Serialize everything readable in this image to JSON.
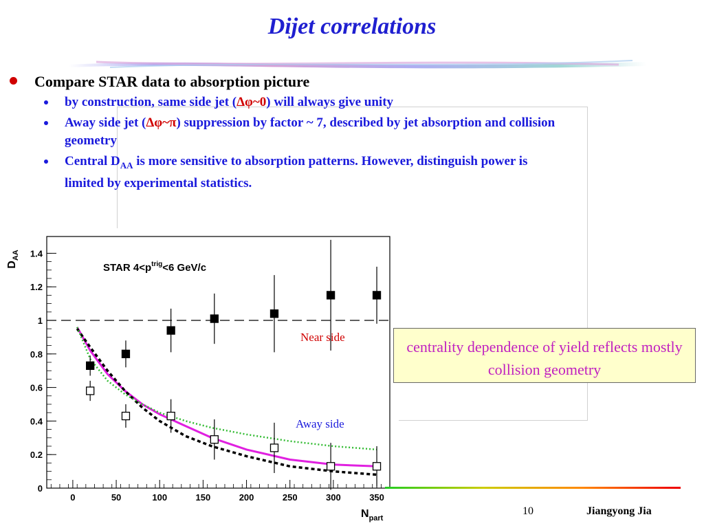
{
  "slide": {
    "title": "Dijet correlations",
    "bullet_main": "Compare STAR data to absorption picture",
    "sub1_a": "by construction, same side jet (",
    "sub1_sym": "Δφ~0",
    "sub1_b": ") will always give unity",
    "sub2_a": "Away side jet (",
    "sub2_sym": "Δφ~π",
    "sub2_b": ") suppression by factor ~ 7, described by jet absorption and collision geometry",
    "sub3_a": "Central D",
    "sub3_sub": "AA",
    "sub3_b": " is more sensitive to absorption patterns.  However, distinguish power is limited by experimental statistics.",
    "callout": "centrality dependence of yield reflects mostly collision geometry",
    "page_number": "10",
    "author": "Jiangyong Jia"
  },
  "colors": {
    "title": "#1f1fd0",
    "bullet_text": "#1a1adc",
    "accent_red": "#d00000",
    "magenta": "#e020e0",
    "green_dotted": "#33bb33",
    "callout_bg": "#ffffcc",
    "callout_text": "#c020c0"
  },
  "chart_data": {
    "type": "scatter",
    "ylabel_main": "D",
    "ylabel_sub": "AA",
    "xlabel_main": "N",
    "xlabel_sub": "part",
    "legend_main": "STAR 4<p",
    "legend_sup": "trig",
    "legend_tail": "<6 GeV/c",
    "xlim": [
      -30,
      365
    ],
    "ylim": [
      0,
      1.5
    ],
    "xticks": [
      0,
      50,
      100,
      150,
      200,
      250,
      300,
      350
    ],
    "yticks": [
      0,
      0.2,
      0.4,
      0.6,
      0.8,
      1,
      1.2,
      1.4
    ],
    "xtick_labels": [
      "0",
      "50",
      "100",
      "150",
      "200",
      "250",
      "300",
      "350"
    ],
    "ytick_labels": [
      "0",
      "0.2",
      "0.4",
      "0.6",
      "0.8",
      "1",
      "1.2",
      "1.4"
    ],
    "reference_line": 1,
    "series": [
      {
        "name": "Near side",
        "marker": "filled-square",
        "x": [
          20,
          61,
          113,
          163,
          232,
          297,
          350
        ],
        "y": [
          0.73,
          0.8,
          0.94,
          1.01,
          1.04,
          1.15,
          1.15
        ],
        "err": [
          0.06,
          0.08,
          0.13,
          0.15,
          0.23,
          0.33,
          0.17
        ]
      },
      {
        "name": "Away side",
        "marker": "open-square",
        "x": [
          20,
          61,
          113,
          163,
          232,
          297,
          350
        ],
        "y": [
          0.58,
          0.43,
          0.43,
          0.29,
          0.24,
          0.13,
          0.13
        ],
        "err": [
          0.06,
          0.07,
          0.1,
          0.12,
          0.15,
          0.14,
          0.12
        ]
      }
    ],
    "curves": [
      {
        "style": "solid-magenta",
        "x": [
          5,
          20,
          40,
          60,
          80,
          100,
          130,
          160,
          200,
          250,
          300,
          350
        ],
        "y": [
          0.96,
          0.82,
          0.68,
          0.58,
          0.5,
          0.44,
          0.37,
          0.3,
          0.23,
          0.17,
          0.14,
          0.13
        ]
      },
      {
        "style": "dashed-black",
        "x": [
          5,
          20,
          40,
          60,
          80,
          100,
          130,
          160,
          200,
          250,
          300,
          350
        ],
        "y": [
          0.95,
          0.84,
          0.7,
          0.58,
          0.48,
          0.4,
          0.31,
          0.25,
          0.19,
          0.13,
          0.1,
          0.08
        ]
      },
      {
        "style": "dotted-green",
        "x": [
          5,
          20,
          40,
          60,
          80,
          100,
          130,
          160,
          200,
          250,
          300,
          350
        ],
        "y": [
          0.96,
          0.77,
          0.64,
          0.56,
          0.5,
          0.45,
          0.4,
          0.36,
          0.32,
          0.28,
          0.25,
          0.23
        ]
      }
    ]
  }
}
